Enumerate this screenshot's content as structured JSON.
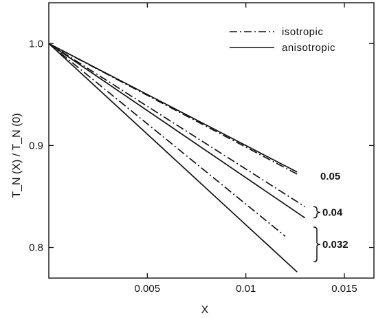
{
  "chart_data": {
    "type": "line",
    "xlabel": "X",
    "ylabel": "T_N (X) / T_N (0)",
    "xlim": [
      0,
      0.0165
    ],
    "ylim": [
      0.77,
      1.04
    ],
    "x_ticks": [
      0.005,
      0.01,
      0.015
    ],
    "x_tick_labels": [
      "0.005",
      "0.01",
      "0.015"
    ],
    "y_ticks": [
      0.8,
      0.9,
      1.0
    ],
    "y_tick_labels": [
      "0.8",
      "0.9",
      "1.0"
    ],
    "legend": {
      "position": "top-right",
      "entries": [
        {
          "label": "isotropic",
          "style": "dashdot"
        },
        {
          "label": "anisotropic",
          "style": "solid"
        }
      ]
    },
    "series": [
      {
        "style": "solid",
        "group": "0.05",
        "x": [
          0,
          0.0126
        ],
        "y": [
          1.0,
          0.874
        ]
      },
      {
        "style": "dashdot",
        "group": "0.05",
        "x": [
          0,
          0.0126
        ],
        "y": [
          1.0,
          0.872
        ]
      },
      {
        "style": "dashdot",
        "group": "0.04",
        "x": [
          0,
          0.013
        ],
        "y": [
          1.0,
          0.84
        ]
      },
      {
        "style": "solid",
        "group": "0.04",
        "x": [
          0,
          0.013
        ],
        "y": [
          1.0,
          0.829
        ]
      },
      {
        "style": "dashdot",
        "group": "0.032",
        "x": [
          0,
          0.012
        ],
        "y": [
          1.0,
          0.811
        ]
      },
      {
        "style": "solid",
        "group": "0.032",
        "x": [
          0,
          0.0126
        ],
        "y": [
          1.0,
          0.776
        ]
      }
    ],
    "annotations": [
      {
        "text": "0.05",
        "bracket": false,
        "y": 0.872
      },
      {
        "text": "0.04",
        "bracket": true,
        "y_range": [
          0.829,
          0.84
        ]
      },
      {
        "text": "0.032",
        "bracket": true,
        "y_range": [
          0.786,
          0.82
        ]
      }
    ]
  }
}
